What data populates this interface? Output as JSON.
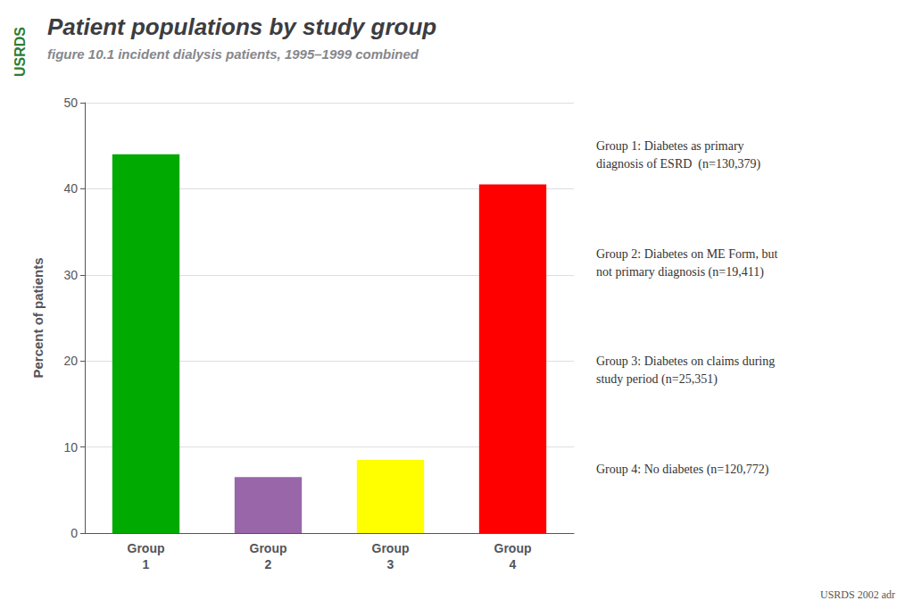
{
  "chart_data": {
    "type": "bar",
    "title": "Patient populations by study group",
    "subtitle": "figure 10.1 incident dialysis patients, 1995–1999 combined",
    "categories": [
      "Group\n1",
      "Group\n2",
      "Group\n3",
      "Group\n4"
    ],
    "values": [
      44.0,
      6.5,
      8.5,
      40.5
    ],
    "colors": [
      "#00aa00",
      "#9966aa",
      "#ffff00",
      "#ff0000"
    ],
    "ylabel": "Percent of patients",
    "ylim": [
      0,
      50
    ],
    "yticks": [
      0,
      10,
      20,
      30,
      40,
      50
    ],
    "grid": true,
    "annotations": [
      "Group 1: Diabetes as primary\ndiagnosis of ESRD  (n=130,379)",
      "Group 2: Diabetes on ME Form, but\nnot primary diagnosis (n=19,411)",
      "Group 3: Diabetes on claims during\nstudy period (n=25,351)",
      "Group 4: No diabetes (n=120,772)",
      "USRDS 2002 adr",
      "USRDS"
    ]
  }
}
